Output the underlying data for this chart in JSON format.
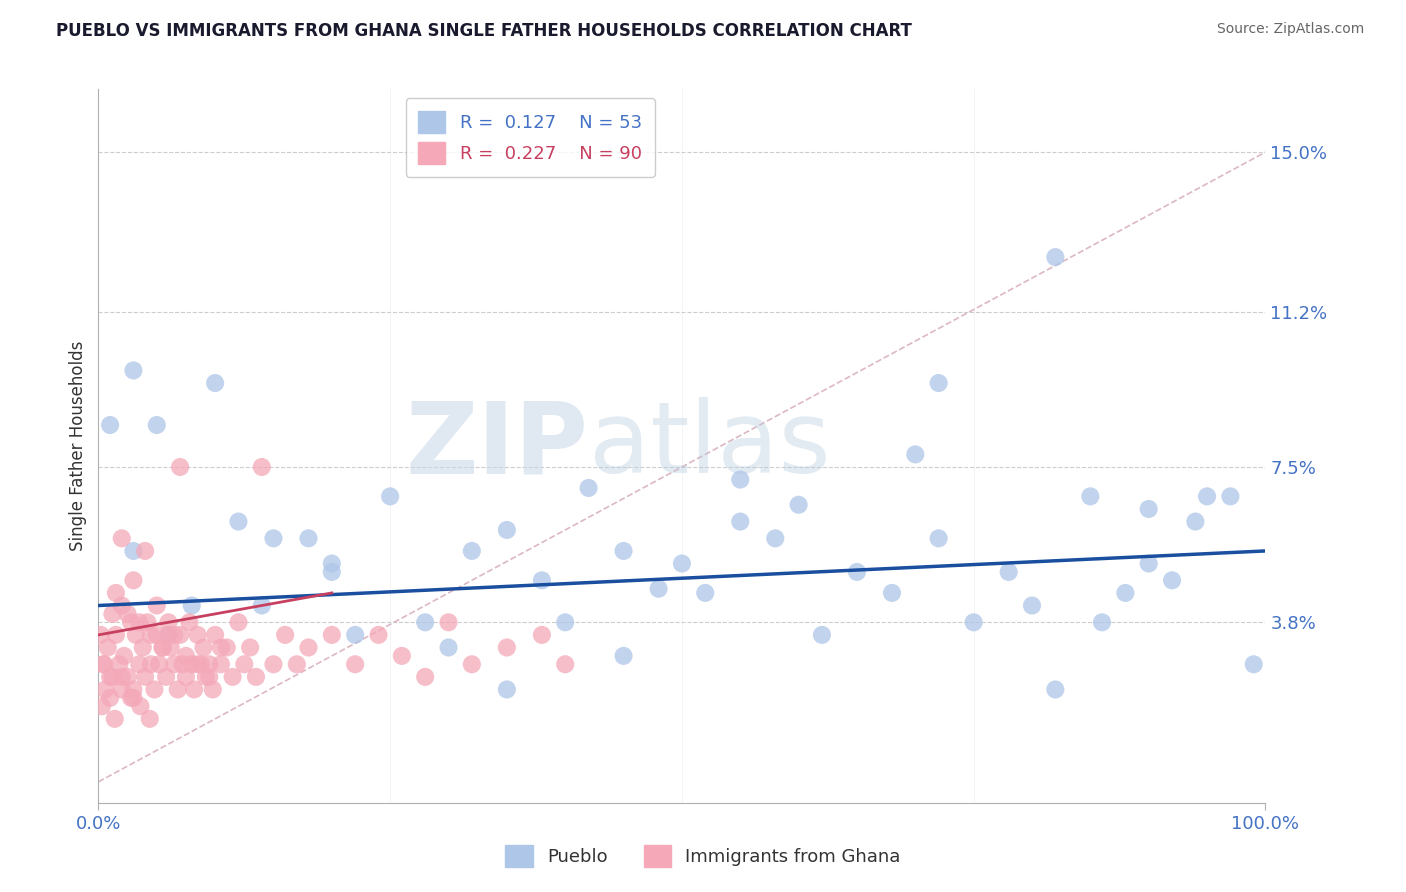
{
  "title": "PUEBLO VS IMMIGRANTS FROM GHANA SINGLE FATHER HOUSEHOLDS CORRELATION CHART",
  "source": "Source: ZipAtlas.com",
  "ylabel": "Single Father Households",
  "xlim": [
    0,
    100
  ],
  "ylim": [
    -0.5,
    16.5
  ],
  "yticks": [
    3.8,
    7.5,
    11.2,
    15.0
  ],
  "ytick_labels": [
    "3.8%",
    "7.5%",
    "11.2%",
    "15.0%"
  ],
  "xtick_vals": [
    0,
    100
  ],
  "xtick_labels": [
    "0.0%",
    "100.0%"
  ],
  "legend_line1": "R =  0.127    N = 53",
  "legend_line2": "R =  0.227    N = 90",
  "series1_name": "Pueblo",
  "series2_name": "Immigrants from Ghana",
  "series1_color": "#aec6e8",
  "series2_color": "#f4a8b8",
  "trend1_color": "#1a4fa0",
  "trend2_color": "#c84060",
  "diagonal_color": "#d8b0be",
  "watermark_zip": "ZIP",
  "watermark_atlas": "atlas",
  "pueblo_x": [
    1,
    3,
    5,
    8,
    10,
    12,
    14,
    18,
    20,
    22,
    25,
    28,
    30,
    32,
    35,
    38,
    40,
    42,
    45,
    48,
    50,
    52,
    55,
    58,
    60,
    62,
    65,
    68,
    70,
    72,
    75,
    78,
    80,
    82,
    85,
    86,
    88,
    90,
    92,
    94,
    95,
    97,
    99,
    3,
    6,
    15,
    35,
    55,
    72,
    82,
    90,
    20,
    45
  ],
  "pueblo_y": [
    8.5,
    5.5,
    8.5,
    4.2,
    9.5,
    6.2,
    4.2,
    5.8,
    5.2,
    3.5,
    6.8,
    3.8,
    3.2,
    5.5,
    2.2,
    4.8,
    3.8,
    7.0,
    5.5,
    4.6,
    5.2,
    4.5,
    7.2,
    5.8,
    6.6,
    3.5,
    5.0,
    4.5,
    7.8,
    5.8,
    3.8,
    5.0,
    4.2,
    12.5,
    6.8,
    3.8,
    4.5,
    5.2,
    4.8,
    6.2,
    6.8,
    6.8,
    2.8,
    9.8,
    3.5,
    5.8,
    6.0,
    6.2,
    9.5,
    2.2,
    6.5,
    5.0,
    3.0
  ],
  "ghana_x": [
    0.2,
    0.5,
    0.8,
    1.0,
    1.2,
    1.5,
    1.8,
    2.0,
    2.2,
    2.5,
    2.8,
    3.0,
    3.2,
    3.5,
    3.8,
    4.0,
    4.2,
    4.5,
    4.8,
    5.0,
    5.2,
    5.5,
    5.8,
    6.0,
    6.2,
    6.5,
    6.8,
    7.0,
    7.2,
    7.5,
    7.8,
    8.0,
    8.2,
    8.5,
    8.8,
    9.0,
    9.2,
    9.5,
    9.8,
    10.0,
    10.5,
    11.0,
    11.5,
    12.0,
    12.5,
    13.0,
    13.5,
    14.0,
    15.0,
    16.0,
    17.0,
    18.0,
    20.0,
    22.0,
    24.0,
    26.0,
    28.0,
    30.0,
    32.0,
    35.0,
    38.0,
    40.0,
    5.0,
    6.0,
    7.0,
    2.0,
    3.0,
    4.0,
    1.5,
    2.5,
    3.5,
    4.5,
    5.5,
    6.5,
    7.5,
    8.5,
    9.5,
    10.5,
    0.3,
    0.6,
    1.0,
    1.4,
    2.0,
    2.8,
    3.6,
    4.4,
    0.4,
    1.2,
    2.0,
    3.0
  ],
  "ghana_y": [
    3.5,
    2.8,
    3.2,
    2.5,
    4.0,
    3.5,
    2.8,
    4.2,
    3.0,
    2.5,
    3.8,
    2.2,
    3.5,
    2.8,
    3.2,
    2.5,
    3.8,
    2.8,
    2.2,
    3.5,
    2.8,
    3.2,
    2.5,
    3.8,
    3.2,
    2.8,
    2.2,
    3.5,
    2.8,
    2.5,
    3.8,
    2.8,
    2.2,
    3.5,
    2.8,
    3.2,
    2.5,
    2.8,
    2.2,
    3.5,
    2.8,
    3.2,
    2.5,
    3.8,
    2.8,
    3.2,
    2.5,
    7.5,
    2.8,
    3.5,
    2.8,
    3.2,
    3.5,
    2.8,
    3.5,
    3.0,
    2.5,
    3.8,
    2.8,
    3.2,
    3.5,
    2.8,
    4.2,
    3.5,
    7.5,
    5.8,
    4.8,
    5.5,
    4.5,
    4.0,
    3.8,
    3.5,
    3.2,
    3.5,
    3.0,
    2.8,
    2.5,
    3.2,
    1.8,
    2.2,
    2.0,
    1.5,
    2.5,
    2.0,
    1.8,
    1.5,
    2.8,
    2.5,
    2.2,
    2.0
  ],
  "trend1_x0": 0,
  "trend1_x1": 100,
  "trend1_y0": 4.2,
  "trend1_y1": 5.5,
  "trend2_x0": 0,
  "trend2_x1": 20,
  "trend2_y0": 3.5,
  "trend2_y1": 4.5
}
